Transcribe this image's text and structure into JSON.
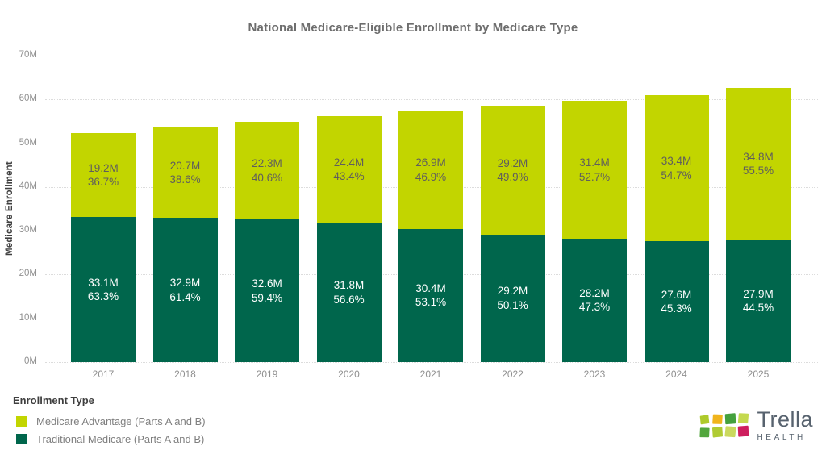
{
  "chart_data": {
    "type": "bar",
    "stacked": true,
    "title": "National Medicare-Eligible Enrollment by Medicare Type",
    "ylabel": "Medicare Enrollment",
    "ylim": [
      0,
      70
    ],
    "ytick_labels": [
      "0M",
      "10M",
      "20M",
      "30M",
      "40M",
      "50M",
      "60M",
      "70M"
    ],
    "grid": "horizontal-dotted",
    "gridline_color": "#dcdcdc",
    "legend_title": "Enrollment Type",
    "legend_position": "bottom-left",
    "categories": [
      "2017",
      "2018",
      "2019",
      "2020",
      "2021",
      "2022",
      "2023",
      "2024",
      "2025"
    ],
    "series": [
      {
        "name": "Medicare Advantage (Parts A and B)",
        "color": "#c2d500",
        "label_color": "#605e5c",
        "values": [
          19.2,
          20.7,
          22.3,
          24.4,
          26.9,
          29.2,
          31.4,
          33.4,
          34.8
        ],
        "value_labels": [
          "19.2M",
          "20.7M",
          "22.3M",
          "24.4M",
          "26.9M",
          "29.2M",
          "31.4M",
          "33.4M",
          "34.8M"
        ],
        "percent_labels": [
          "36.7%",
          "38.6%",
          "40.6%",
          "43.4%",
          "46.9%",
          "49.9%",
          "52.7%",
          "54.7%",
          "55.5%"
        ]
      },
      {
        "name": "Traditional Medicare (Parts A and B)",
        "color": "#00664c",
        "label_color": "#ffffff",
        "values": [
          33.1,
          32.9,
          32.6,
          31.8,
          30.4,
          29.2,
          28.2,
          27.6,
          27.9
        ],
        "value_labels": [
          "33.1M",
          "32.9M",
          "32.6M",
          "31.8M",
          "30.4M",
          "29.2M",
          "28.2M",
          "27.6M",
          "27.9M"
        ],
        "percent_labels": [
          "63.3%",
          "61.4%",
          "59.4%",
          "56.6%",
          "53.1%",
          "50.1%",
          "47.3%",
          "45.3%",
          "44.5%"
        ]
      }
    ]
  },
  "branding": {
    "name": "Trella",
    "subname": "HEALTH",
    "text_color": "#57626e",
    "mark_colors": [
      "#aeca2b",
      "#f0b41c",
      "#44a13d",
      "#c4d94f",
      "#52a63d",
      "#b0cb33",
      "#cbd95e",
      "#ce1f5e"
    ]
  }
}
